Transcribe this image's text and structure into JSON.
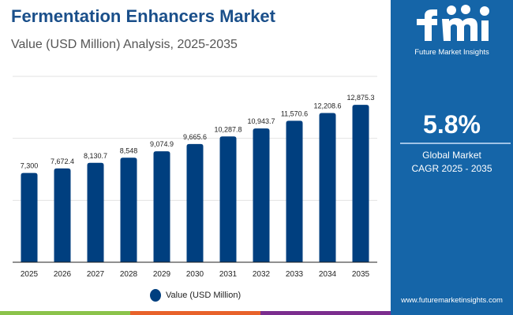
{
  "title": "Fermentation Enhancers Market",
  "subtitle": "Value (USD Million) Analysis, 2025-2035",
  "chart_data": {
    "type": "bar",
    "categories": [
      "2025",
      "2026",
      "2027",
      "2028",
      "2029",
      "2030",
      "2031",
      "2032",
      "2033",
      "2034",
      "2035"
    ],
    "series": [
      {
        "name": "Value (USD Million)",
        "values": [
          7300,
          7672.4,
          8130.7,
          8548,
          9074.9,
          9665.6,
          10287.8,
          10943.7,
          11570.6,
          12208.6,
          12875.3
        ]
      }
    ],
    "labels": [
      "7,300",
      "7,672.4",
      "8,130.7",
      "8,548",
      "9,074.9",
      "9,665.6",
      "10,287.8",
      "10,943.7",
      "11,570.6",
      "12,208.6",
      "12,875.3"
    ],
    "ylim": [
      0,
      15200
    ],
    "grid": true,
    "legend": "bottom",
    "color": "#003f7f"
  },
  "legend_label": "Value (USD Million)",
  "panel": {
    "brand": "Future Market Insights",
    "cagr": "5.8%",
    "line1": "Global Market",
    "line2": "CAGR 2025 - 2035",
    "url": "www.futuremarketinsights.com",
    "bg": "#1565a8"
  },
  "strip_colors": [
    "#8bc34a",
    "#e8622a",
    "#7b2d8e"
  ]
}
